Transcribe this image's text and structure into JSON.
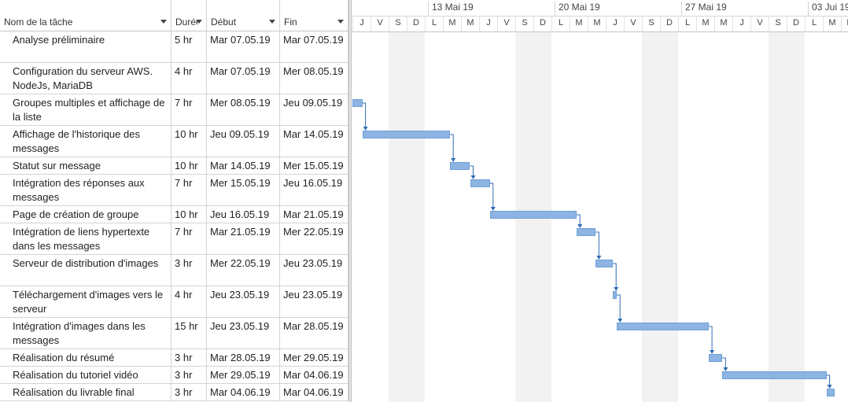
{
  "columns": {
    "name": "Nom de la tâche",
    "duration": "Durée",
    "start": "Début",
    "end": "Fin"
  },
  "tasks": [
    {
      "name": "Analyse préliminaire",
      "duration": "5 hr",
      "start": "Mar 07.05.19",
      "end": "Mar 07.05.19"
    },
    {
      "name": "Configuration du serveur AWS. NodeJs, MariaDB",
      "duration": "4 hr",
      "start": "Mar 07.05.19",
      "end": "Mer 08.05.19"
    },
    {
      "name": "Groupes multiples et affichage de la liste",
      "duration": "7 hr",
      "start": "Mer 08.05.19",
      "end": "Jeu 09.05.19"
    },
    {
      "name": "Affichage de l'historique des messages",
      "duration": "10 hr",
      "start": "Jeu 09.05.19",
      "end": "Mar 14.05.19"
    },
    {
      "name": "Statut sur message",
      "duration": "10 hr",
      "start": "Mar 14.05.19",
      "end": "Mer 15.05.19"
    },
    {
      "name": "Intégration des réponses aux messages",
      "duration": "7 hr",
      "start": "Mer 15.05.19",
      "end": "Jeu 16.05.19"
    },
    {
      "name": "Page de création de groupe",
      "duration": "10 hr",
      "start": "Jeu 16.05.19",
      "end": "Mar 21.05.19"
    },
    {
      "name": "Intégration de liens hypertexte dans les messages",
      "duration": "7 hr",
      "start": "Mar 21.05.19",
      "end": "Mer 22.05.19"
    },
    {
      "name": "Serveur de distribution d'images",
      "duration": "3 hr",
      "start": "Mer 22.05.19",
      "end": "Jeu 23.05.19"
    },
    {
      "name": "Téléchargement d'images vers le serveur",
      "duration": "4 hr",
      "start": "Jeu 23.05.19",
      "end": "Jeu 23.05.19"
    },
    {
      "name": "Intégration d'images dans les messages",
      "duration": "15 hr",
      "start": "Jeu 23.05.19",
      "end": "Mar 28.05.19"
    },
    {
      "name": "Réalisation du résumé",
      "duration": "3 hr",
      "start": "Mar 28.05.19",
      "end": "Mer 29.05.19"
    },
    {
      "name": "Réalisation du tutoriel vidéo",
      "duration": "3 hr",
      "start": "Mer 29.05.19",
      "end": "Mar 04.06.19"
    },
    {
      "name": "Réalisation du livrable final",
      "duration": "3 hr",
      "start": "Mar 04.06.19",
      "end": "Mar 04.06.19"
    }
  ],
  "timescale": {
    "weeks": [
      "13 Mai 19",
      "20 Mai 19",
      "27 Mai 19",
      "03 Jui 19"
    ],
    "days": [
      "J",
      "V",
      "S",
      "D",
      "L",
      "M",
      "M",
      "J",
      "V",
      "S",
      "D",
      "L",
      "M",
      "M",
      "J",
      "V",
      "S",
      "D",
      "L",
      "M",
      "M",
      "J",
      "V",
      "S",
      "D",
      "L",
      "M",
      "M"
    ]
  },
  "bar_color": "#8db4e2",
  "link_color": "#2e6db4",
  "gantt": [
    {
      "start_day": 0.0,
      "end_day": 0.55
    },
    {
      "start_day": 0.55,
      "end_day": 5.4
    },
    {
      "start_day": 5.4,
      "end_day": 6.5
    },
    {
      "start_day": 6.5,
      "end_day": 7.6
    },
    {
      "start_day": 7.6,
      "end_day": 12.4
    },
    {
      "start_day": 12.4,
      "end_day": 13.45
    },
    {
      "start_day": 13.45,
      "end_day": 14.4
    },
    {
      "start_day": 14.4,
      "end_day": 14.6
    },
    {
      "start_day": 14.6,
      "end_day": 19.7
    },
    {
      "start_day": 19.7,
      "end_day": 20.45
    },
    {
      "start_day": 20.45,
      "end_day": 26.2
    },
    {
      "start_day": 26.2,
      "end_day": 26.65
    }
  ]
}
